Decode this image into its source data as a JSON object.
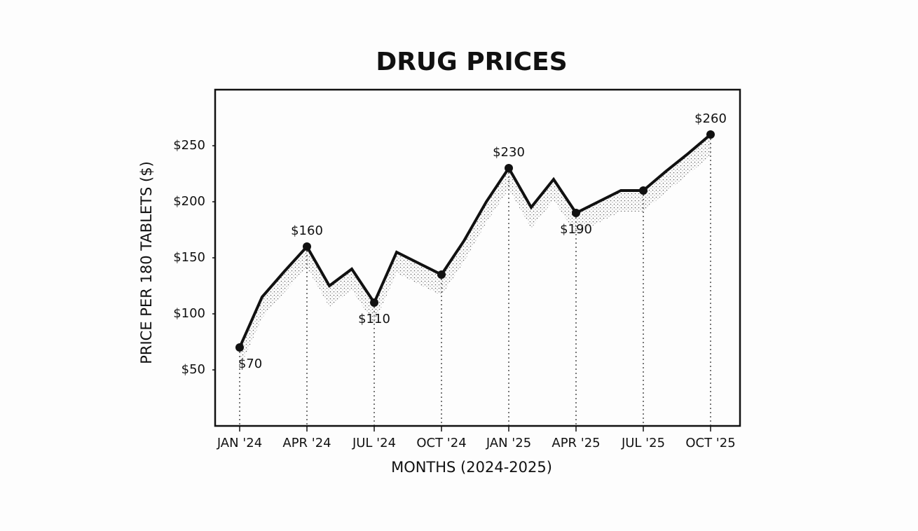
{
  "chart_data": {
    "type": "line",
    "title": "DRUG PRICES",
    "x_label": "MONTHS (2024-2025)",
    "y_label": "PRICE PER 180 TABLETS ($)",
    "categories": [
      "JAN '24",
      null,
      null,
      "APR '24",
      null,
      null,
      "JUL '24",
      null,
      null,
      "OCT '24",
      null,
      null,
      "JAN '25",
      null,
      null,
      "APR '25",
      null,
      null,
      "JUL '25",
      null,
      null,
      "OCT '25"
    ],
    "series": [
      {
        "name": "Price",
        "color": "#111111",
        "values": [
          70,
          115,
          138,
          160,
          125,
          140,
          110,
          155,
          145,
          135,
          165,
          200,
          230,
          195,
          220,
          190,
          200,
          210,
          210,
          227,
          243,
          260
        ],
        "value_labels": [
          "$70",
          null,
          null,
          "$160",
          null,
          null,
          "$110",
          null,
          null,
          null,
          null,
          null,
          "$230",
          null,
          null,
          "$190",
          null,
          null,
          null,
          null,
          null,
          "$260"
        ]
      }
    ],
    "ylim": [
      0,
      300
    ],
    "yticks": [
      {
        "value": 50,
        "label": "$50"
      },
      {
        "value": 100,
        "label": "$100"
      },
      {
        "value": 150,
        "label": "$150"
      },
      {
        "value": 200,
        "label": "$200"
      },
      {
        "value": 250,
        "label": "$250"
      }
    ],
    "grid": false
  }
}
